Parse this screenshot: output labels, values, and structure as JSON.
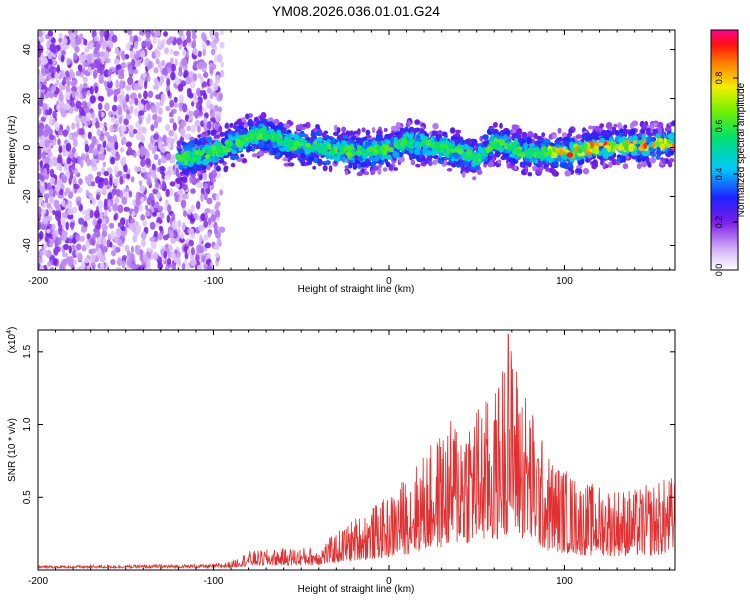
{
  "chart_data": [
    {
      "type": "heatmap",
      "title": "YM08.2026.036.01.01.G24",
      "xlabel": "Height of straight line (km)",
      "ylabel": "Frequency (Hz)",
      "xlim": [
        -200,
        163
      ],
      "ylim": [
        -50,
        48
      ],
      "xticks": [
        -200,
        -100,
        0,
        100
      ],
      "xtick_labels": [
        "-200",
        "-100",
        "0",
        "100"
      ],
      "yticks": [
        -40,
        -20,
        0,
        20,
        40
      ],
      "ytick_labels": [
        "-40",
        "-20",
        "0",
        "20",
        "40"
      ],
      "colorbar": {
        "label": "Normalized spectral amplitude",
        "range": [
          0,
          1
        ],
        "ticks": [
          0,
          0.2,
          0.4,
          0.6,
          0.8
        ],
        "tick_labels": [
          "0.0",
          "0.2",
          "0.4",
          "0.6",
          "0.8"
        ]
      },
      "description_points": {
        "noise_region_x": [
          -200,
          -95
        ],
        "signal_trace": [
          {
            "x": -120,
            "f": -5
          },
          {
            "x": -100,
            "f": -2
          },
          {
            "x": -90,
            "f": 1
          },
          {
            "x": -75,
            "f": 6
          },
          {
            "x": -60,
            "f": 2
          },
          {
            "x": -40,
            "f": 0
          },
          {
            "x": -20,
            "f": -2
          },
          {
            "x": 0,
            "f": -1
          },
          {
            "x": 10,
            "f": 2
          },
          {
            "x": 30,
            "f": 0
          },
          {
            "x": 50,
            "f": -4
          },
          {
            "x": 60,
            "f": 2
          },
          {
            "x": 80,
            "f": -2
          },
          {
            "x": 100,
            "f": -2
          },
          {
            "x": 120,
            "f": 0
          },
          {
            "x": 140,
            "f": 1
          },
          {
            "x": 163,
            "f": 2
          }
        ]
      }
    },
    {
      "type": "line",
      "xlabel": "Height of straight line (km)",
      "ylabel": "SNR (10 * v/v)",
      "multiplier_label": "(x10",
      "multiplier_exp": "4",
      "multiplier_close": ")",
      "xlim": [
        -200,
        163
      ],
      "ylim": [
        0,
        1.65
      ],
      "xticks": [
        -200,
        -100,
        0,
        100
      ],
      "xtick_labels": [
        "-200",
        "-100",
        "0",
        "100"
      ],
      "yticks": [
        0.5,
        1.0,
        1.5
      ],
      "ytick_labels": [
        "0.5",
        "1.0",
        "1.5"
      ],
      "line_color": "#e03030",
      "envelope": [
        {
          "x": -200,
          "y": 0.02
        },
        {
          "x": -100,
          "y": 0.03
        },
        {
          "x": -90,
          "y": 0.05
        },
        {
          "x": -80,
          "y": 0.12
        },
        {
          "x": -60,
          "y": 0.14
        },
        {
          "x": -40,
          "y": 0.15
        },
        {
          "x": -20,
          "y": 0.35
        },
        {
          "x": 0,
          "y": 0.5
        },
        {
          "x": 20,
          "y": 0.8
        },
        {
          "x": 40,
          "y": 1.1
        },
        {
          "x": 60,
          "y": 1.2
        },
        {
          "x": 68,
          "y": 1.62
        },
        {
          "x": 90,
          "y": 0.8
        },
        {
          "x": 110,
          "y": 0.6
        },
        {
          "x": 140,
          "y": 0.55
        },
        {
          "x": 163,
          "y": 0.65
        }
      ]
    }
  ]
}
